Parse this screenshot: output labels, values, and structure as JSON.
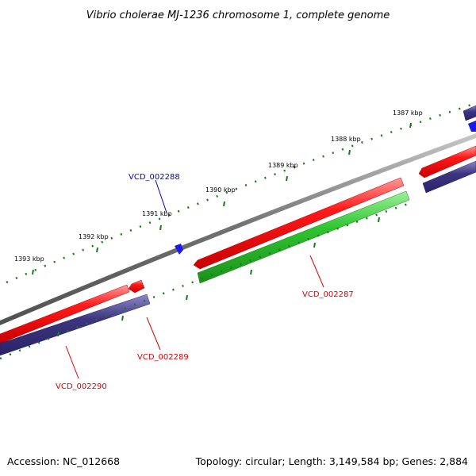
{
  "title": "Vibrio cholerae MJ-1236 chromosome 1, complete genome",
  "footer": {
    "accession": "Accession: NC_012668",
    "summary": "Topology: circular; Length: 3,149,584 bp; Genes: 2,884"
  },
  "colors": {
    "backbone": "#7a7a7a",
    "forward_cds": "#ee1111",
    "reverse_cds": "#3d3580",
    "rna": "#22bb22",
    "small_feature": "#1a1aee",
    "tick": "#1a7a1a",
    "label_blue": "#0000cc",
    "label_red": "#dd0000"
  },
  "ticks": [
    {
      "label": "1387 kbp"
    },
    {
      "label": "1388 kbp"
    },
    {
      "label": "1389 kbp"
    },
    {
      "label": "1390 kbp"
    },
    {
      "label": "1391 kbp"
    },
    {
      "label": "1392 kbp"
    },
    {
      "label": "1393 kbp"
    }
  ],
  "gene_labels": [
    {
      "text": "VCD_002288",
      "color": "blue"
    },
    {
      "text": "VCD_002287",
      "color": "red"
    },
    {
      "text": "VCD_002289",
      "color": "red"
    },
    {
      "text": "VCD_002290",
      "color": "red"
    }
  ]
}
